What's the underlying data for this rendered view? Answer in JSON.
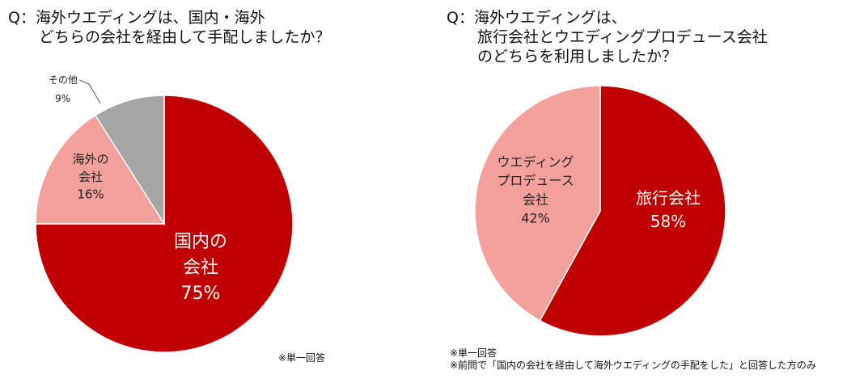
{
  "left_chart": {
    "title": "Q：海外ウエディングは、国内・海外\n　　どちらの会社を経由して手配しましたか？",
    "note": "※単一回答",
    "colors": {
      "domestic": "#C00000",
      "overseas": "#F4A09C",
      "other": "#A6A6A6"
    }
  },
  "right_chart": {
    "title": "Q：海外ウエディングは、\n　　旅行会社とウエディングプロデュース会社\n　　のどちらを利用しましたか？",
    "note": "※単一回答\n※前問で「国内の会社を経由して海外ウエディングの手配をした」と回答した方のみ",
    "colors": {
      "travel": "#C00000",
      "produce": "#F4A09C"
    }
  },
  "chart_data": [
    {
      "type": "pie",
      "title": "Q：海外ウエディングは、国内・海外どちらの会社を経由して手配しましたか？",
      "categories": [
        "国内の会社",
        "海外の会社",
        "その他"
      ],
      "values": [
        75,
        16,
        9
      ],
      "labels": [
        {
          "name": "国内の\n会社",
          "value": "75%"
        },
        {
          "name": "海外の\n会社",
          "value": "16%"
        },
        {
          "name": "その他",
          "value": "9%"
        }
      ],
      "unit": "%"
    },
    {
      "type": "pie",
      "title": "Q：海外ウエディングは、旅行会社とウエディングプロデュース会社のどちらを利用しましたか？",
      "categories": [
        "旅行会社",
        "ウエディングプロデュース会社"
      ],
      "values": [
        58,
        42
      ],
      "labels": [
        {
          "name": "旅行会社",
          "value": "58%"
        },
        {
          "name": "ウエディング\nプロデュース\n会社",
          "value": "42%"
        }
      ],
      "unit": "%"
    }
  ]
}
